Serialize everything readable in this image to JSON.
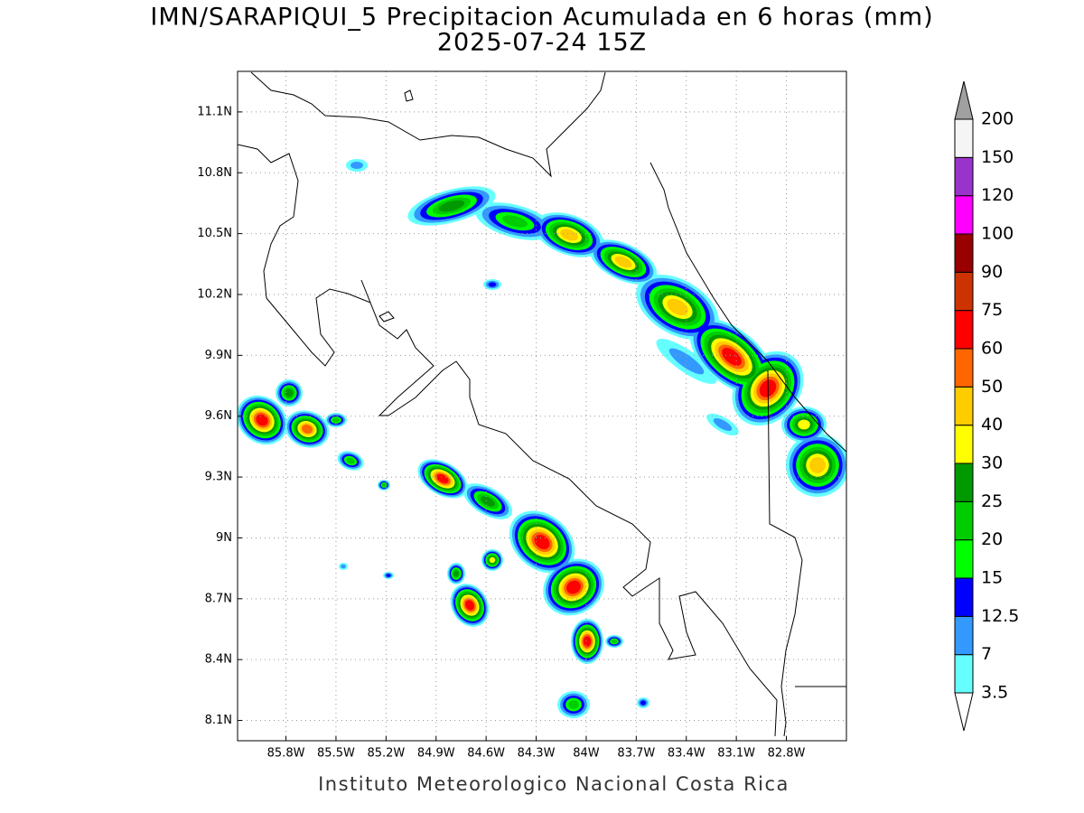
{
  "title": "IMN/SARAPIQUI_5 Precipitacion Acumulada en 6 horas (mm)",
  "subtitle": "2025-07-24 15Z",
  "footer": "Instituto Meteorologico Nacional Costa Rica",
  "map": {
    "xlim": [
      -86.09,
      -82.44
    ],
    "ylim": [
      8.0,
      11.3
    ],
    "grid": true,
    "xticks": [
      {
        "value": -85.8,
        "label": "85.8W"
      },
      {
        "value": -85.5,
        "label": "85.5W"
      },
      {
        "value": -85.2,
        "label": "85.2W"
      },
      {
        "value": -84.9,
        "label": "84.9W"
      },
      {
        "value": -84.6,
        "label": "84.6W"
      },
      {
        "value": -84.3,
        "label": "84.3W"
      },
      {
        "value": -84.0,
        "label": "84W"
      },
      {
        "value": -83.7,
        "label": "83.7W"
      },
      {
        "value": -83.4,
        "label": "83.4W"
      },
      {
        "value": -83.1,
        "label": "83.1W"
      },
      {
        "value": -82.8,
        "label": "82.8W"
      }
    ],
    "yticks": [
      {
        "value": 11.1,
        "label": "11.1N"
      },
      {
        "value": 10.8,
        "label": "10.8N"
      },
      {
        "value": 10.5,
        "label": "10.5N"
      },
      {
        "value": 10.2,
        "label": "10.2N"
      },
      {
        "value": 9.9,
        "label": "9.9N"
      },
      {
        "value": 9.6,
        "label": "9.6N"
      },
      {
        "value": 9.3,
        "label": "9.3N"
      },
      {
        "value": 9.0,
        "label": "9N"
      },
      {
        "value": 8.7,
        "label": "8.7N"
      },
      {
        "value": 8.4,
        "label": "8.4N"
      },
      {
        "value": 8.1,
        "label": "8.1N"
      }
    ]
  },
  "colorbar": {
    "levels": [
      3.5,
      7,
      12.5,
      15,
      20,
      25,
      30,
      40,
      50,
      60,
      75,
      90,
      100,
      120,
      150,
      200
    ],
    "colors": [
      "#66ffff",
      "#3399ff",
      "#0000ff",
      "#00ff00",
      "#00cc00",
      "#009900",
      "#ffff00",
      "#ffcc00",
      "#ff6600",
      "#ff0000",
      "#cc3300",
      "#990000",
      "#ff00ff",
      "#9933cc",
      "#f5f5f5"
    ],
    "under_color": "#ffffff",
    "over_color": "#a0a0a0"
  }
}
